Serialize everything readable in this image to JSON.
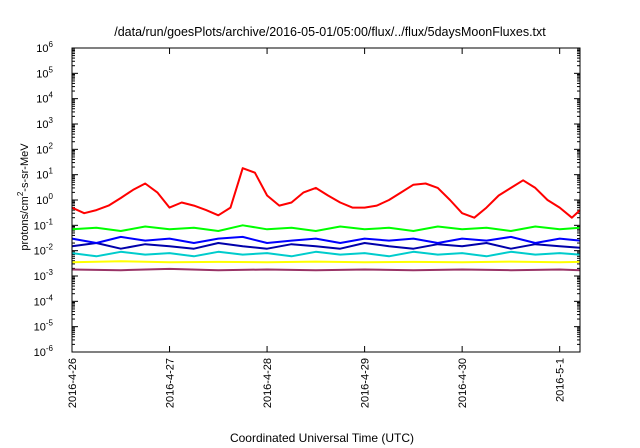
{
  "chart_data": {
    "type": "line",
    "title": "/data/run/goesPlots/archive/2016-05-01/05:00/flux/../flux/5daysMoonFluxes.txt",
    "xlabel": "Coordinated Universal Time (UTC)",
    "ylabel": {
      "prefix": "protons/cm",
      "sup": "2",
      "suffix": "-s-sr-MeV"
    },
    "y_scale": "log",
    "ylim": [
      1e-06,
      1000000.0
    ],
    "y_ticks": [
      {
        "exp": "-6",
        "value": 1e-06
      },
      {
        "exp": "-5",
        "value": 1e-05
      },
      {
        "exp": "-4",
        "value": 0.0001
      },
      {
        "exp": "-3",
        "value": 0.001
      },
      {
        "exp": "-2",
        "value": 0.01
      },
      {
        "exp": "-1",
        "value": 0.1
      },
      {
        "exp": "0",
        "value": 1
      },
      {
        "exp": "1",
        "value": 10
      },
      {
        "exp": "2",
        "value": 100
      },
      {
        "exp": "3",
        "value": 1000
      },
      {
        "exp": "4",
        "value": 10000
      },
      {
        "exp": "5",
        "value": 100000
      },
      {
        "exp": "6",
        "value": 1000000
      }
    ],
    "xlim": [
      "2016-04-26 00:00",
      "2016-05-01 05:00"
    ],
    "x_ticks": [
      {
        "label": "2016-4-26",
        "time": "2016-04-26 00:00"
      },
      {
        "label": "2016-4-27",
        "time": "2016-04-27 00:00"
      },
      {
        "label": "2016-4-28",
        "time": "2016-04-28 00:00"
      },
      {
        "label": "2016-4-29",
        "time": "2016-04-29 00:00"
      },
      {
        "label": "2016-4-30",
        "time": "2016-04-30 00:00"
      },
      {
        "label": "2016-5-1",
        "time": "2016-05-01 00:00"
      }
    ],
    "grid": false,
    "legend": "none",
    "series": [
      {
        "color": "#ff0000",
        "x": [
          "2016-04-26 00:00",
          "2016-04-26 03:00",
          "2016-04-26 06:00",
          "2016-04-26 09:00",
          "2016-04-26 12:00",
          "2016-04-26 15:00",
          "2016-04-26 18:00",
          "2016-04-26 21:00",
          "2016-04-27 00:00",
          "2016-04-27 03:00",
          "2016-04-27 06:00",
          "2016-04-27 09:00",
          "2016-04-27 12:00",
          "2016-04-27 15:00",
          "2016-04-27 18:00",
          "2016-04-27 21:00",
          "2016-04-28 00:00",
          "2016-04-28 03:00",
          "2016-04-28 06:00",
          "2016-04-28 09:00",
          "2016-04-28 12:00",
          "2016-04-28 15:00",
          "2016-04-28 18:00",
          "2016-04-28 21:00",
          "2016-04-29 00:00",
          "2016-04-29 03:00",
          "2016-04-29 06:00",
          "2016-04-29 09:00",
          "2016-04-29 12:00",
          "2016-04-29 15:00",
          "2016-04-29 18:00",
          "2016-04-29 21:00",
          "2016-04-30 00:00",
          "2016-04-30 03:00",
          "2016-04-30 06:00",
          "2016-04-30 09:00",
          "2016-04-30 12:00",
          "2016-04-30 15:00",
          "2016-04-30 18:00",
          "2016-04-30 21:00",
          "2016-05-01 00:00",
          "2016-05-01 03:00",
          "2016-05-01 05:00"
        ],
        "y": [
          0.5,
          0.3,
          0.4,
          0.6,
          1.2,
          2.5,
          4.5,
          2.0,
          0.5,
          0.8,
          0.6,
          0.4,
          0.25,
          0.5,
          18,
          12,
          1.5,
          0.6,
          0.8,
          2.0,
          3.0,
          1.5,
          0.8,
          0.5,
          0.5,
          0.6,
          1.0,
          2.0,
          4.0,
          4.5,
          3.0,
          1.0,
          0.3,
          0.2,
          0.5,
          1.5,
          3.0,
          6.0,
          3.0,
          1.0,
          0.5,
          0.2,
          0.4
        ]
      },
      {
        "color": "#00ff00",
        "x": [
          "2016-04-26 00:00",
          "2016-04-26 06:00",
          "2016-04-26 12:00",
          "2016-04-26 18:00",
          "2016-04-27 00:00",
          "2016-04-27 06:00",
          "2016-04-27 12:00",
          "2016-04-27 18:00",
          "2016-04-28 00:00",
          "2016-04-28 06:00",
          "2016-04-28 12:00",
          "2016-04-28 18:00",
          "2016-04-29 00:00",
          "2016-04-29 06:00",
          "2016-04-29 12:00",
          "2016-04-29 18:00",
          "2016-04-30 00:00",
          "2016-04-30 06:00",
          "2016-04-30 12:00",
          "2016-04-30 18:00",
          "2016-05-01 00:00",
          "2016-05-01 05:00"
        ],
        "y": [
          0.07,
          0.08,
          0.06,
          0.09,
          0.07,
          0.08,
          0.06,
          0.1,
          0.07,
          0.08,
          0.06,
          0.09,
          0.07,
          0.08,
          0.06,
          0.09,
          0.07,
          0.08,
          0.06,
          0.09,
          0.07,
          0.08
        ]
      },
      {
        "color": "#0000ff",
        "x": [
          "2016-04-26 00:00",
          "2016-04-26 06:00",
          "2016-04-26 12:00",
          "2016-04-26 18:00",
          "2016-04-27 00:00",
          "2016-04-27 06:00",
          "2016-04-27 12:00",
          "2016-04-27 18:00",
          "2016-04-28 00:00",
          "2016-04-28 06:00",
          "2016-04-28 12:00",
          "2016-04-28 18:00",
          "2016-04-29 00:00",
          "2016-04-29 06:00",
          "2016-04-29 12:00",
          "2016-04-29 18:00",
          "2016-04-30 00:00",
          "2016-04-30 06:00",
          "2016-04-30 12:00",
          "2016-04-30 18:00",
          "2016-05-01 00:00",
          "2016-05-01 05:00"
        ],
        "y": [
          0.03,
          0.02,
          0.035,
          0.025,
          0.03,
          0.02,
          0.03,
          0.035,
          0.02,
          0.025,
          0.03,
          0.02,
          0.03,
          0.025,
          0.03,
          0.02,
          0.03,
          0.025,
          0.035,
          0.02,
          0.03,
          0.025
        ]
      },
      {
        "color": "#0000aa",
        "x": [
          "2016-04-26 00:00",
          "2016-04-26 06:00",
          "2016-04-26 12:00",
          "2016-04-26 18:00",
          "2016-04-27 00:00",
          "2016-04-27 06:00",
          "2016-04-27 12:00",
          "2016-04-27 18:00",
          "2016-04-28 00:00",
          "2016-04-28 06:00",
          "2016-04-28 12:00",
          "2016-04-28 18:00",
          "2016-04-29 00:00",
          "2016-04-29 06:00",
          "2016-04-29 12:00",
          "2016-04-29 18:00",
          "2016-04-30 00:00",
          "2016-04-30 06:00",
          "2016-04-30 12:00",
          "2016-04-30 18:00",
          "2016-05-01 00:00",
          "2016-05-01 05:00"
        ],
        "y": [
          0.015,
          0.02,
          0.012,
          0.018,
          0.015,
          0.012,
          0.02,
          0.015,
          0.012,
          0.018,
          0.015,
          0.012,
          0.02,
          0.015,
          0.012,
          0.018,
          0.015,
          0.02,
          0.012,
          0.018,
          0.015,
          0.013
        ]
      },
      {
        "color": "#00cccc",
        "x": [
          "2016-04-26 00:00",
          "2016-04-26 06:00",
          "2016-04-26 12:00",
          "2016-04-26 18:00",
          "2016-04-27 00:00",
          "2016-04-27 06:00",
          "2016-04-27 12:00",
          "2016-04-27 18:00",
          "2016-04-28 00:00",
          "2016-04-28 06:00",
          "2016-04-28 12:00",
          "2016-04-28 18:00",
          "2016-04-29 00:00",
          "2016-04-29 06:00",
          "2016-04-29 12:00",
          "2016-04-29 18:00",
          "2016-04-30 00:00",
          "2016-04-30 06:00",
          "2016-04-30 12:00",
          "2016-04-30 18:00",
          "2016-05-01 00:00",
          "2016-05-01 05:00"
        ],
        "y": [
          0.008,
          0.006,
          0.009,
          0.007,
          0.008,
          0.006,
          0.009,
          0.007,
          0.008,
          0.006,
          0.009,
          0.007,
          0.008,
          0.006,
          0.009,
          0.007,
          0.008,
          0.006,
          0.009,
          0.007,
          0.008,
          0.007
        ]
      },
      {
        "color": "#ffff00",
        "x": [
          "2016-04-26 00:00",
          "2016-04-26 12:00",
          "2016-04-27 00:00",
          "2016-04-27 12:00",
          "2016-04-28 00:00",
          "2016-04-28 12:00",
          "2016-04-29 00:00",
          "2016-04-29 12:00",
          "2016-04-30 00:00",
          "2016-04-30 12:00",
          "2016-05-01 00:00",
          "2016-05-01 05:00"
        ],
        "y": [
          0.0035,
          0.0038,
          0.0035,
          0.0036,
          0.0035,
          0.0037,
          0.0035,
          0.0036,
          0.0035,
          0.0037,
          0.0035,
          0.0036
        ]
      },
      {
        "color": "#993366",
        "x": [
          "2016-04-26 00:00",
          "2016-04-26 12:00",
          "2016-04-27 00:00",
          "2016-04-27 12:00",
          "2016-04-28 00:00",
          "2016-04-28 12:00",
          "2016-04-29 00:00",
          "2016-04-29 12:00",
          "2016-04-30 00:00",
          "2016-04-30 12:00",
          "2016-05-01 00:00",
          "2016-05-01 05:00"
        ],
        "y": [
          0.0018,
          0.0017,
          0.0019,
          0.0017,
          0.0018,
          0.0017,
          0.0018,
          0.0017,
          0.0018,
          0.0017,
          0.0018,
          0.0017
        ]
      }
    ]
  }
}
